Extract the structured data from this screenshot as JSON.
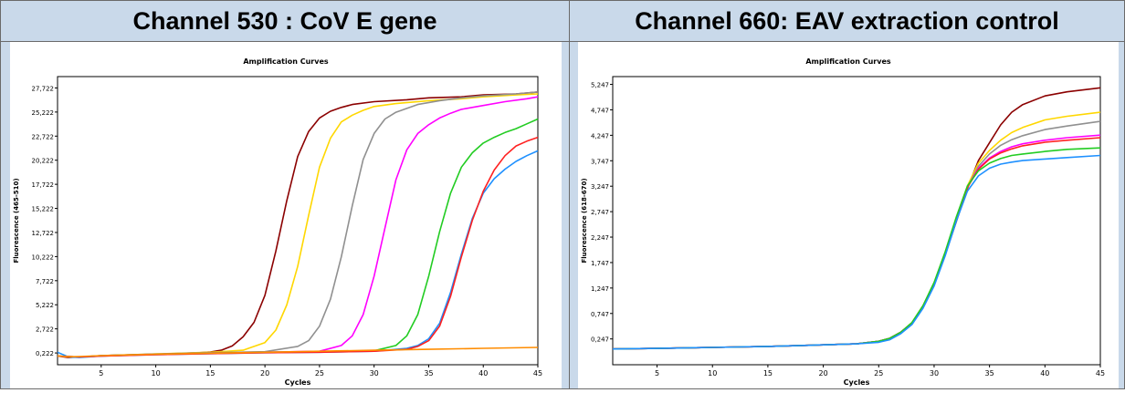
{
  "headers": {
    "left": "Channel 530 : CoV E gene",
    "right": "Channel 660: EAV extraction control"
  },
  "chart_data": [
    {
      "type": "line",
      "title": "Amplification Curves",
      "xlabel": "Cycles",
      "ylabel": "Fluorescence (465-510)",
      "xlim": [
        1,
        45
      ],
      "ylim": [
        -1000,
        28900
      ],
      "xticks": [
        5,
        10,
        15,
        20,
        25,
        30,
        35,
        40,
        45
      ],
      "yticks": [
        222,
        2722,
        5222,
        7722,
        10222,
        12722,
        15222,
        17722,
        20222,
        22722,
        25222,
        27722
      ],
      "ytick_labels": [
        "0,222",
        "2,722",
        "5,222",
        "7,722",
        "10,222",
        "12,722",
        "15,222",
        "17,722",
        "20,222",
        "22,722",
        "25,222",
        "27,722"
      ],
      "grid": false,
      "series": [
        {
          "color": "#8b0000",
          "x": [
            1,
            2,
            3,
            5,
            10,
            14,
            15,
            16,
            17,
            18,
            19,
            20,
            21,
            22,
            23,
            24,
            25,
            26,
            27,
            28,
            30,
            33,
            35,
            38,
            40,
            43,
            45
          ],
          "values": [
            -100,
            -250,
            -200,
            -100,
            80,
            250,
            320,
            500,
            950,
            1900,
            3400,
            6200,
            10800,
            16000,
            20600,
            23200,
            24600,
            25300,
            25700,
            26000,
            26300,
            26500,
            26700,
            26800,
            27000,
            27100,
            27300
          ]
        },
        {
          "color": "#ffd700",
          "x": [
            1,
            3,
            5,
            10,
            15,
            18,
            20,
            21,
            22,
            23,
            24,
            25,
            26,
            27,
            28,
            29,
            30,
            32,
            35,
            38,
            40,
            43,
            45
          ],
          "values": [
            -100,
            -200,
            -50,
            120,
            300,
            500,
            1300,
            2600,
            5200,
            9200,
            14500,
            19500,
            22500,
            24200,
            24900,
            25400,
            25800,
            26100,
            26400,
            26600,
            26800,
            27000,
            27100
          ]
        },
        {
          "color": "#909090",
          "x": [
            1,
            3,
            5,
            10,
            15,
            20,
            23,
            24,
            25,
            26,
            27,
            28,
            29,
            30,
            31,
            32,
            33,
            34,
            36,
            38,
            40,
            43,
            45
          ],
          "values": [
            -100,
            -200,
            -50,
            120,
            250,
            350,
            900,
            1500,
            3000,
            5800,
            10200,
            15500,
            20300,
            23000,
            24500,
            25200,
            25600,
            26000,
            26400,
            26700,
            26900,
            27100,
            27300
          ]
        },
        {
          "color": "#ff00ff",
          "x": [
            1,
            3,
            5,
            10,
            15,
            20,
            25,
            27,
            28,
            29,
            30,
            31,
            32,
            33,
            34,
            35,
            36,
            37,
            38,
            40,
            42,
            44,
            45
          ],
          "values": [
            -100,
            -200,
            -50,
            100,
            200,
            300,
            400,
            1000,
            2000,
            4200,
            8200,
            13200,
            18200,
            21300,
            23000,
            23900,
            24600,
            25100,
            25500,
            25900,
            26300,
            26600,
            26800
          ]
        },
        {
          "color": "#22cc22",
          "x": [
            1,
            3,
            5,
            10,
            15,
            20,
            25,
            30,
            32,
            33,
            34,
            35,
            36,
            37,
            38,
            39,
            40,
            41,
            42,
            43,
            44,
            45
          ],
          "values": [
            -100,
            -200,
            -50,
            100,
            200,
            300,
            350,
            450,
            1000,
            2000,
            4200,
            8200,
            12800,
            16800,
            19500,
            21000,
            22000,
            22600,
            23100,
            23500,
            24000,
            24500
          ]
        },
        {
          "color": "#1e90ff",
          "x": [
            1,
            2,
            3,
            5,
            10,
            15,
            20,
            25,
            30,
            33,
            34,
            35,
            36,
            37,
            38,
            39,
            40,
            41,
            42,
            43,
            44,
            45
          ],
          "values": [
            300,
            -200,
            -250,
            -100,
            50,
            150,
            250,
            300,
            400,
            700,
            1000,
            1700,
            3300,
            6500,
            10500,
            14200,
            16800,
            18300,
            19300,
            20100,
            20700,
            21200
          ]
        },
        {
          "color": "#ff2020",
          "x": [
            1,
            3,
            5,
            10,
            15,
            20,
            25,
            30,
            33,
            34,
            35,
            36,
            37,
            38,
            39,
            40,
            41,
            42,
            43,
            44,
            45
          ],
          "values": [
            -100,
            -200,
            -100,
            50,
            150,
            250,
            300,
            400,
            600,
            900,
            1500,
            3000,
            6100,
            10200,
            14000,
            17000,
            19200,
            20700,
            21700,
            22200,
            22600
          ]
        },
        {
          "color": "#ff8c00",
          "x": [
            1,
            2,
            3,
            5,
            10,
            15,
            20,
            25,
            30,
            35,
            40,
            45
          ],
          "values": [
            -80,
            -180,
            -150,
            -50,
            100,
            200,
            300,
            400,
            500,
            600,
            700,
            800
          ]
        }
      ]
    },
    {
      "type": "line",
      "title": "Amplification Curves",
      "xlabel": "Cycles",
      "ylabel": "Fluorescence (618-670)",
      "xlim": [
        1,
        45
      ],
      "ylim": [
        -260,
        5400
      ],
      "xticks": [
        5,
        10,
        15,
        20,
        25,
        30,
        35,
        40,
        45
      ],
      "yticks": [
        247,
        747,
        1247,
        1747,
        2247,
        2747,
        3247,
        3747,
        4247,
        4747,
        5247
      ],
      "ytick_labels": [
        "0,247",
        "0,747",
        "1,247",
        "1,747",
        "2,247",
        "2,747",
        "3,247",
        "3,747",
        "4,247",
        "4,747",
        "5,247"
      ],
      "grid": false,
      "series": [
        {
          "color": "#8b0000",
          "x": [
            1,
            5,
            10,
            15,
            20,
            23,
            25,
            26,
            27,
            28,
            29,
            30,
            31,
            32,
            33,
            34,
            35,
            36,
            37,
            38,
            40,
            42,
            45
          ],
          "values": [
            50,
            60,
            80,
            100,
            130,
            150,
            200,
            260,
            380,
            560,
            880,
            1320,
            1900,
            2550,
            3200,
            3750,
            4100,
            4450,
            4700,
            4850,
            5020,
            5100,
            5180
          ]
        },
        {
          "color": "#ffd700",
          "x": [
            1,
            5,
            10,
            15,
            20,
            23,
            25,
            26,
            27,
            28,
            29,
            30,
            31,
            32,
            33,
            34,
            35,
            36,
            37,
            38,
            40,
            42,
            45
          ],
          "values": [
            50,
            60,
            80,
            100,
            130,
            150,
            200,
            260,
            380,
            570,
            900,
            1350,
            1950,
            2620,
            3250,
            3700,
            3950,
            4150,
            4300,
            4400,
            4550,
            4620,
            4700
          ]
        },
        {
          "color": "#909090",
          "x": [
            1,
            5,
            10,
            15,
            20,
            23,
            25,
            26,
            27,
            28,
            29,
            30,
            31,
            32,
            33,
            34,
            35,
            36,
            37,
            38,
            40,
            42,
            45
          ],
          "values": [
            50,
            60,
            80,
            100,
            130,
            150,
            200,
            260,
            380,
            560,
            890,
            1340,
            1930,
            2600,
            3220,
            3640,
            3880,
            4050,
            4160,
            4240,
            4360,
            4430,
            4520
          ]
        },
        {
          "color": "#ff00ff",
          "x": [
            1,
            5,
            10,
            15,
            20,
            23,
            25,
            26,
            27,
            28,
            29,
            30,
            31,
            32,
            33,
            34,
            35,
            36,
            37,
            38,
            40,
            42,
            45
          ],
          "values": [
            50,
            60,
            80,
            100,
            130,
            150,
            200,
            260,
            380,
            560,
            880,
            1340,
            1940,
            2620,
            3230,
            3600,
            3800,
            3930,
            4020,
            4080,
            4150,
            4200,
            4250
          ]
        },
        {
          "color": "#ff2020",
          "x": [
            1,
            5,
            10,
            15,
            20,
            23,
            25,
            26,
            27,
            28,
            29,
            30,
            31,
            32,
            33,
            34,
            35,
            36,
            37,
            38,
            40,
            42,
            45
          ],
          "values": [
            50,
            60,
            80,
            100,
            130,
            150,
            200,
            260,
            380,
            560,
            880,
            1330,
            1920,
            2600,
            3220,
            3580,
            3780,
            3900,
            3980,
            4040,
            4110,
            4150,
            4200
          ]
        },
        {
          "color": "#22cc22",
          "x": [
            1,
            5,
            10,
            15,
            20,
            23,
            25,
            26,
            27,
            28,
            29,
            30,
            31,
            32,
            33,
            34,
            35,
            36,
            37,
            38,
            40,
            42,
            45
          ],
          "values": [
            50,
            60,
            80,
            100,
            130,
            150,
            200,
            260,
            380,
            570,
            900,
            1360,
            1960,
            2640,
            3250,
            3550,
            3700,
            3790,
            3850,
            3880,
            3930,
            3970,
            4000
          ]
        },
        {
          "color": "#1e90ff",
          "x": [
            1,
            5,
            10,
            15,
            20,
            23,
            25,
            26,
            27,
            28,
            29,
            30,
            31,
            32,
            33,
            34,
            35,
            36,
            37,
            38,
            40,
            42,
            45
          ],
          "values": [
            50,
            60,
            80,
            100,
            130,
            150,
            180,
            230,
            350,
            530,
            850,
            1290,
            1880,
            2560,
            3150,
            3450,
            3600,
            3680,
            3720,
            3750,
            3780,
            3810,
            3850
          ]
        }
      ]
    }
  ]
}
